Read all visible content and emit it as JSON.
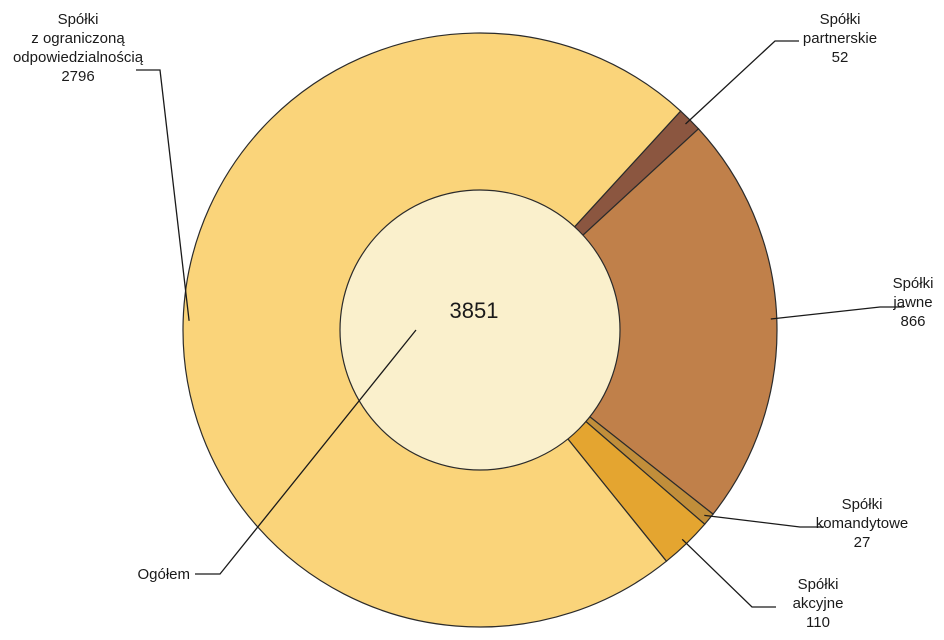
{
  "chart_data": {
    "type": "pie",
    "total": {
      "label": "Ogółem",
      "value": 3851
    },
    "slices": [
      {
        "label_lines": [
          "Spółki",
          "partnerskie"
        ],
        "value": 52,
        "color": "#8B5640"
      },
      {
        "label_lines": [
          "Spółki",
          "jawne"
        ],
        "value": 866,
        "color": "#C0804A"
      },
      {
        "label_lines": [
          "Spółki",
          "komandytowe"
        ],
        "value": 27,
        "color": "#C18E3A"
      },
      {
        "label_lines": [
          "Spółki",
          "akcyjne"
        ],
        "value": 110,
        "color": "#E4A530"
      },
      {
        "label_lines": [
          "Spółki",
          "z ograniczoną",
          "odpowiedzialnością"
        ],
        "value": 2796,
        "color": "#FAD47A"
      }
    ],
    "inner_color": "#FAF0CC"
  }
}
